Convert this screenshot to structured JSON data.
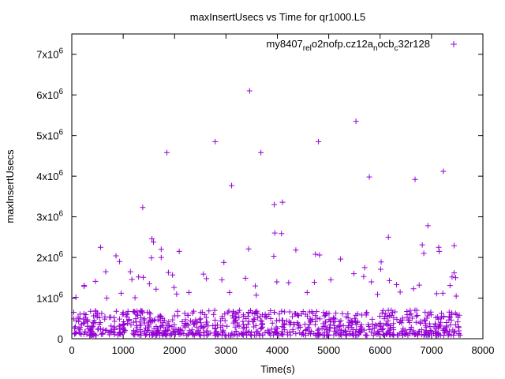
{
  "chart_data": {
    "type": "scatter",
    "title": "maxInsertUsecs vs Time for qr1000.L5",
    "xlabel": "Time(s)",
    "ylabel": "maxInsertUsecs",
    "xlim": [
      0,
      8000
    ],
    "ylim": [
      0,
      7500000
    ],
    "x_ticks": [
      0,
      1000,
      2000,
      3000,
      4000,
      5000,
      6000,
      7000,
      8000
    ],
    "y_ticks": [
      {
        "value": 0,
        "mantissa": "0",
        "exp": ""
      },
      {
        "value": 1000000,
        "mantissa": "1x10",
        "exp": "6"
      },
      {
        "value": 2000000,
        "mantissa": "2x10",
        "exp": "6"
      },
      {
        "value": 3000000,
        "mantissa": "3x10",
        "exp": "6"
      },
      {
        "value": 4000000,
        "mantissa": "4x10",
        "exp": "6"
      },
      {
        "value": 5000000,
        "mantissa": "5x10",
        "exp": "6"
      },
      {
        "value": 6000000,
        "mantissa": "6x10",
        "exp": "6"
      },
      {
        "value": 7000000,
        "mantissa": "7x10",
        "exp": "6"
      }
    ],
    "grid": false,
    "legend_position": "top-right",
    "marker": "+",
    "color": "#9400d3",
    "series": [
      {
        "name": "my8407_rel_o2nofp.cz12a_nocb_c32r128",
        "legend_parts": [
          {
            "t": "my8407",
            "sub": false
          },
          {
            "t": "rel",
            "sub": true
          },
          {
            "t": "o2nofp.cz12a",
            "sub": false
          },
          {
            "t": "n",
            "sub": true
          },
          {
            "t": "ocb",
            "sub": false
          },
          {
            "t": "c",
            "sub": true
          },
          {
            "t": "32r128",
            "sub": false
          }
        ],
        "points": [
          [
            3460,
            6100000
          ],
          [
            5530,
            5350000
          ],
          [
            2790,
            4850000
          ],
          [
            4800,
            4850000
          ],
          [
            1850,
            4580000
          ],
          [
            3680,
            4580000
          ],
          [
            7230,
            4120000
          ],
          [
            5790,
            3980000
          ],
          [
            6680,
            3920000
          ],
          [
            3110,
            3770000
          ],
          [
            4100,
            3360000
          ],
          [
            3940,
            3300000
          ],
          [
            1380,
            3230000
          ],
          [
            6930,
            2780000
          ],
          [
            3950,
            2600000
          ],
          [
            4080,
            2590000
          ],
          [
            6160,
            2500000
          ],
          [
            1560,
            2460000
          ],
          [
            1590,
            2380000
          ],
          [
            6820,
            2310000
          ],
          [
            7440,
            2290000
          ],
          [
            560,
            2250000
          ],
          [
            7140,
            2250000
          ],
          [
            3440,
            2210000
          ],
          [
            1740,
            2200000
          ],
          [
            4360,
            2180000
          ],
          [
            2090,
            2150000
          ],
          [
            7150,
            2150000
          ],
          [
            6850,
            2100000
          ],
          [
            4740,
            2080000
          ],
          [
            4820,
            2060000
          ],
          [
            860,
            2040000
          ],
          [
            1740,
            2000000
          ],
          [
            3930,
            2030000
          ],
          [
            5230,
            1960000
          ],
          [
            1550,
            1990000
          ],
          [
            930,
            1900000
          ],
          [
            2960,
            1880000
          ],
          [
            6020,
            1890000
          ],
          [
            6010,
            1710000
          ],
          [
            5700,
            1750000
          ],
          [
            660,
            1650000
          ],
          [
            1140,
            1650000
          ],
          [
            1880,
            1630000
          ],
          [
            1960,
            1570000
          ],
          [
            2560,
            1590000
          ],
          [
            5490,
            1600000
          ],
          [
            2620,
            1480000
          ],
          [
            1170,
            1460000
          ],
          [
            1300,
            1520000
          ],
          [
            1390,
            1510000
          ],
          [
            5680,
            1530000
          ],
          [
            7440,
            1620000
          ],
          [
            7400,
            1520000
          ],
          [
            3380,
            1490000
          ],
          [
            2920,
            1450000
          ],
          [
            240,
            1310000
          ],
          [
            240,
            1290000
          ],
          [
            1990,
            1260000
          ],
          [
            2040,
            1100000
          ],
          [
            3570,
            1300000
          ],
          [
            3990,
            1400000
          ],
          [
            4220,
            1380000
          ],
          [
            4720,
            1390000
          ],
          [
            5040,
            1450000
          ],
          [
            5830,
            1400000
          ],
          [
            6180,
            1430000
          ],
          [
            6320,
            1330000
          ],
          [
            6650,
            1230000
          ],
          [
            6760,
            1320000
          ],
          [
            7360,
            1310000
          ],
          [
            7470,
            1500000
          ],
          [
            460,
            1410000
          ],
          [
            960,
            1120000
          ],
          [
            1510,
            1350000
          ],
          [
            1640,
            1220000
          ],
          [
            2280,
            1140000
          ],
          [
            3070,
            1140000
          ],
          [
            3590,
            1070000
          ],
          [
            4580,
            1140000
          ],
          [
            5950,
            1090000
          ],
          [
            6390,
            1150000
          ],
          [
            7100,
            1110000
          ],
          [
            7220,
            1120000
          ],
          [
            7480,
            1050000
          ],
          [
            80,
            1020000
          ],
          [
            680,
            1000000
          ],
          [
            1230,
            1010000
          ]
        ]
      }
    ],
    "dense_band": {
      "x_start": 30,
      "x_end": 7560,
      "y_min": 80000,
      "y_max": 700000,
      "count": 900
    }
  }
}
